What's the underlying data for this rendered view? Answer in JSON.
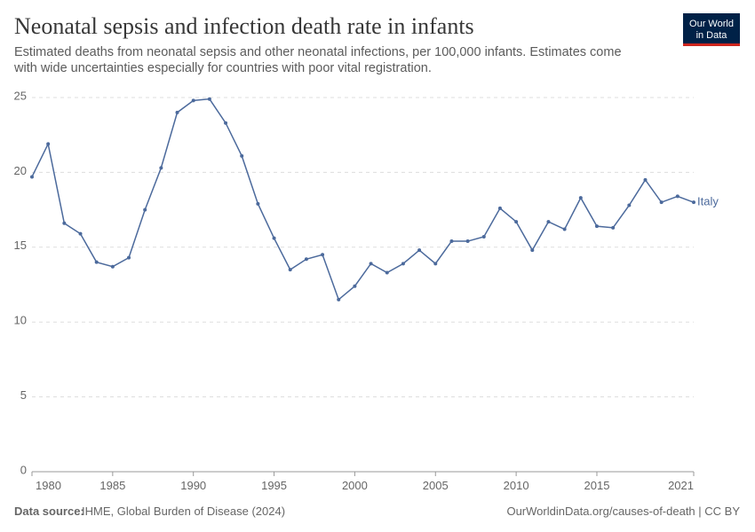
{
  "chart_data": {
    "type": "line",
    "title": "Neonatal sepsis and infection death rate in infants",
    "subtitle": "Estimated deaths from neonatal sepsis and other neonatal infections, per 100,000 infants. Estimates come with wide uncertainties especially for countries with poor vital registration.",
    "logo": [
      "Our World",
      "in Data"
    ],
    "source_label": "Data source:",
    "source": "IHME, Global Burden of Disease (2024)",
    "url": "OurWorldinData.org/causes-of-death | CC BY",
    "x": [
      1980,
      1981,
      1982,
      1983,
      1984,
      1985,
      1986,
      1987,
      1988,
      1989,
      1990,
      1991,
      1992,
      1993,
      1994,
      1995,
      1996,
      1997,
      1998,
      1999,
      2000,
      2001,
      2002,
      2003,
      2004,
      2005,
      2006,
      2007,
      2008,
      2009,
      2010,
      2011,
      2012,
      2013,
      2014,
      2015,
      2016,
      2017,
      2018,
      2019,
      2020,
      2021
    ],
    "series": [
      {
        "name": "Italy",
        "color": "#4c6a9c",
        "values": [
          19.7,
          21.9,
          16.6,
          15.9,
          14.0,
          13.7,
          14.3,
          17.5,
          20.3,
          24.0,
          24.8,
          24.9,
          23.3,
          21.1,
          17.9,
          15.6,
          13.5,
          14.2,
          14.5,
          11.5,
          12.4,
          13.9,
          13.3,
          13.9,
          14.8,
          13.9,
          15.4,
          15.4,
          15.7,
          17.6,
          16.7,
          14.8,
          16.7,
          16.2,
          18.3,
          16.4,
          16.3,
          17.8,
          19.5,
          18.0,
          18.4,
          18.0
        ]
      }
    ],
    "xlim": [
      1980,
      2021
    ],
    "xticks": [
      1980,
      1985,
      1990,
      1995,
      2000,
      2005,
      2010,
      2015,
      2021
    ],
    "ylim": [
      0,
      25
    ],
    "yticks": [
      0,
      5,
      10,
      15,
      20,
      25
    ],
    "grid": true
  }
}
